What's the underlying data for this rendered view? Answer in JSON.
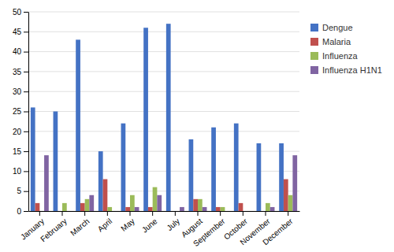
{
  "chart_data": {
    "type": "bar",
    "categories": [
      "January",
      "February",
      "March",
      "April",
      "May",
      "June",
      "July",
      "August",
      "September",
      "October",
      "November",
      "December"
    ],
    "series": [
      {
        "name": "Dengue",
        "color": "#4472C4",
        "values": [
          26,
          25,
          43,
          15,
          22,
          46,
          47,
          18,
          21,
          22,
          17,
          17
        ]
      },
      {
        "name": "Malaria",
        "color": "#C0504D",
        "values": [
          2,
          0,
          2,
          8,
          1,
          1,
          0,
          3,
          1,
          2,
          0,
          8
        ]
      },
      {
        "name": "Influenza",
        "color": "#9BBB59",
        "values": [
          0,
          2,
          3,
          1,
          4,
          6,
          0,
          3,
          1,
          0,
          2,
          4
        ]
      },
      {
        "name": "Influenza H1N1",
        "color": "#8064A2",
        "values": [
          14,
          0,
          4,
          0,
          1,
          4,
          1,
          1,
          0,
          0,
          1,
          14
        ]
      }
    ],
    "ylim": [
      0,
      50
    ],
    "yticks": [
      0,
      5,
      10,
      15,
      20,
      25,
      30,
      35,
      40,
      45,
      50
    ],
    "grid": true,
    "legend": "right"
  }
}
